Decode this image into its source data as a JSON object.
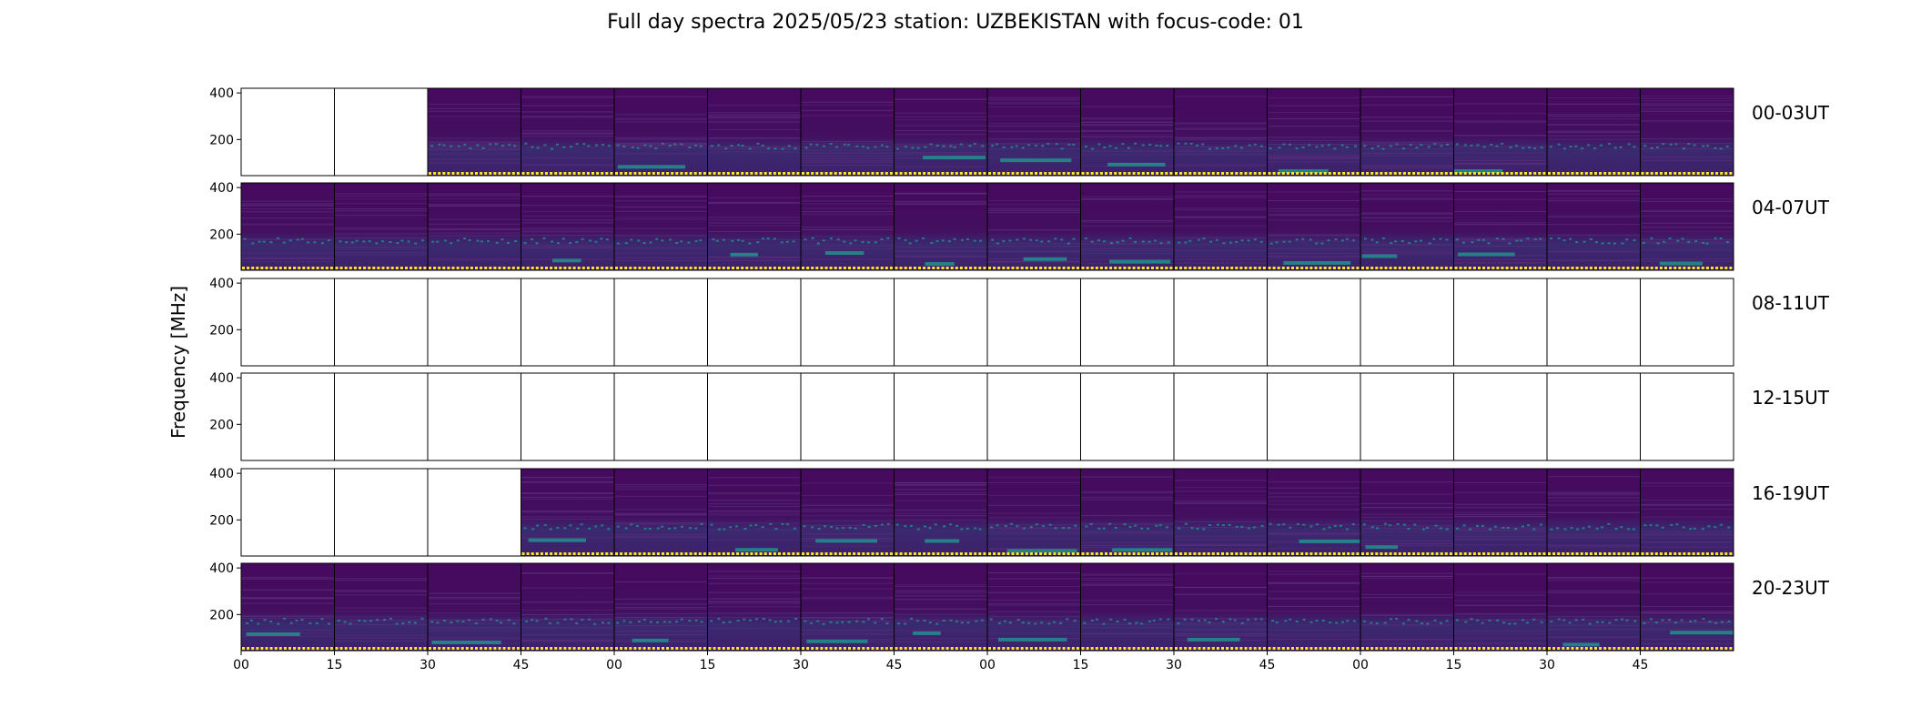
{
  "chart_data": {
    "type": "heatmap",
    "title": "Full day spectra 2025/05/23 station: UZBEKISTAN with focus-code: 01",
    "ylabel": "Frequency [MHz]",
    "y_ticks": [
      200,
      400
    ],
    "x_tick_labels": [
      "00",
      "15",
      "30",
      "45",
      "00",
      "15",
      "30",
      "45",
      "00",
      "15",
      "30",
      "45",
      "00",
      "15",
      "30",
      "45"
    ],
    "colormap": "viridis",
    "colors": {
      "low": "#440154",
      "mid": "#21918c",
      "high": "#fde725"
    },
    "rows": [
      {
        "label": "00-03UT",
        "panels": [
          0,
          0,
          1,
          1,
          1,
          1,
          1,
          1,
          1,
          1,
          1,
          1,
          1,
          1,
          1,
          1
        ]
      },
      {
        "label": "04-07UT",
        "panels": [
          1,
          1,
          1,
          1,
          1,
          1,
          1,
          1,
          1,
          1,
          1,
          1,
          1,
          1,
          1,
          1
        ]
      },
      {
        "label": "08-11UT",
        "panels": [
          0,
          0,
          0,
          0,
          0,
          0,
          0,
          0,
          0,
          0,
          0,
          0,
          0,
          0,
          0,
          0
        ]
      },
      {
        "label": "12-15UT",
        "panels": [
          0,
          0,
          0,
          0,
          0,
          0,
          0,
          0,
          0,
          0,
          0,
          0,
          0,
          0,
          0,
          0
        ]
      },
      {
        "label": "16-19UT",
        "panels": [
          0,
          0,
          0,
          1,
          1,
          1,
          1,
          1,
          1,
          1,
          1,
          1,
          1,
          1,
          1,
          1
        ]
      },
      {
        "label": "20-23UT",
        "panels": [
          1,
          1,
          1,
          1,
          1,
          1,
          1,
          1,
          1,
          1,
          1,
          1,
          1,
          1,
          1,
          1
        ]
      }
    ]
  }
}
